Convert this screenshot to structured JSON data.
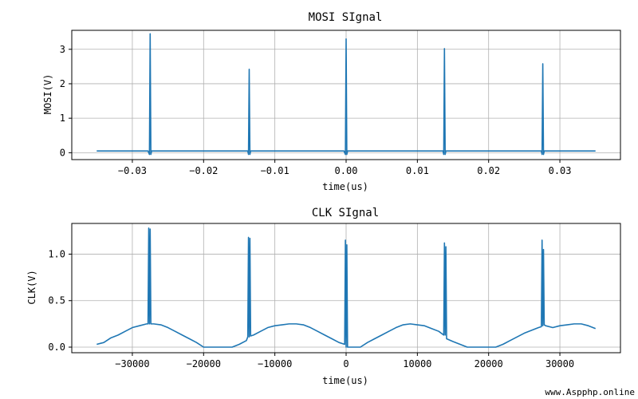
{
  "watermark": "www.Aspphp.online",
  "chart_data": [
    {
      "type": "line",
      "title": "MOSI SIgnal",
      "xlabel": "time(us)",
      "ylabel": "MOSI(V)",
      "xlim": [
        -0.0385,
        0.0385
      ],
      "ylim": [
        -0.2,
        3.55
      ],
      "xticks": [
        -0.03,
        -0.02,
        -0.01,
        0.0,
        0.01,
        0.02,
        0.03
      ],
      "xtick_labels": [
        "−0.03",
        "−0.02",
        "−0.01",
        "0.00",
        "0.01",
        "0.02",
        "0.03"
      ],
      "yticks": [
        0,
        1,
        2,
        3
      ],
      "ytick_labels": [
        "0",
        "1",
        "2",
        "3"
      ],
      "grid": true,
      "color": "#1f77b4",
      "series": [
        {
          "x": [
            -0.035,
            -0.0278,
            -0.0276,
            -0.0275,
            -0.0274,
            -0.0273,
            -0.0138,
            -0.0137,
            -0.0136,
            -0.0135,
            -0.0134,
            -0.0003,
            -0.0001,
            0.0,
            0.0001,
            0.0002,
            0.0136,
            0.0137,
            0.0138,
            0.0139,
            0.014,
            0.0274,
            0.0275,
            0.0276,
            0.0277,
            0.0278,
            0.035
          ],
          "y": [
            0.05,
            0.05,
            -0.05,
            3.45,
            -0.05,
            0.05,
            0.05,
            -0.05,
            2.42,
            -0.05,
            0.05,
            0.05,
            -0.05,
            3.3,
            -0.05,
            0.05,
            0.05,
            -0.05,
            3.02,
            -0.05,
            0.05,
            0.05,
            -0.05,
            2.58,
            -0.05,
            0.05,
            0.05
          ]
        }
      ]
    },
    {
      "type": "line",
      "title": "CLK SIgnal",
      "xlabel": "time(us)",
      "ylabel": "CLK(V)",
      "xlim": [
        -38500,
        38500
      ],
      "ylim": [
        -0.06,
        1.33
      ],
      "xticks": [
        -30000,
        -20000,
        -10000,
        0,
        10000,
        20000,
        30000
      ],
      "xtick_labels": [
        "−30000",
        "−20000",
        "−10000",
        "0",
        "10000",
        "20000",
        "30000"
      ],
      "yticks": [
        0.0,
        0.5,
        1.0
      ],
      "ytick_labels": [
        "0.0",
        "0.5",
        "1.0"
      ],
      "grid": true,
      "color": "#1f77b4",
      "series": [
        {
          "x": [
            -35000,
            -34000,
            -33000,
            -32000,
            -31000,
            -30000,
            -29000,
            -28000,
            -27800,
            -27700,
            -27600,
            -27500,
            -27400,
            -27300,
            -27000,
            -26000,
            -25000,
            -24000,
            -23000,
            -22000,
            -21000,
            -20000,
            -19000,
            -18000,
            -17000,
            -16000,
            -15000,
            -14000,
            -13800,
            -13700,
            -13600,
            -13500,
            -13400,
            -13000,
            -12000,
            -11000,
            -10000,
            -9000,
            -8000,
            -7000,
            -6000,
            -5000,
            -4000,
            -3000,
            -2000,
            -1000,
            -200,
            -100,
            0,
            100,
            200,
            300,
            1000,
            2000,
            3000,
            4000,
            5000,
            6000,
            7000,
            8000,
            9000,
            10000,
            11000,
            12000,
            13000,
            13700,
            13800,
            13900,
            14000,
            14100,
            15000,
            16000,
            17000,
            18000,
            19000,
            20000,
            21000,
            22000,
            23000,
            24000,
            25000,
            26000,
            27000,
            27400,
            27500,
            27600,
            27700,
            27800,
            28000,
            29000,
            30000,
            31000,
            32000,
            33000,
            34000,
            35000
          ],
          "y": [
            0.03,
            0.05,
            0.1,
            0.13,
            0.17,
            0.21,
            0.23,
            0.25,
            0.25,
            1.28,
            0.25,
            1.27,
            0.25,
            0.25,
            0.25,
            0.24,
            0.21,
            0.17,
            0.13,
            0.09,
            0.05,
            0.0,
            0.0,
            0.0,
            0.0,
            0.0,
            0.03,
            0.07,
            0.11,
            1.18,
            0.11,
            1.17,
            0.12,
            0.13,
            0.17,
            0.21,
            0.23,
            0.24,
            0.25,
            0.25,
            0.24,
            0.21,
            0.17,
            0.13,
            0.09,
            0.05,
            0.03,
            1.15,
            0.0,
            1.1,
            0.0,
            0.0,
            0.0,
            0.0,
            0.05,
            0.09,
            0.13,
            0.17,
            0.21,
            0.24,
            0.25,
            0.24,
            0.23,
            0.2,
            0.17,
            0.13,
            1.12,
            0.13,
            1.08,
            0.09,
            0.06,
            0.03,
            0.0,
            0.0,
            0.0,
            0.0,
            0.0,
            0.03,
            0.07,
            0.11,
            0.15,
            0.18,
            0.21,
            0.22,
            1.15,
            0.23,
            1.05,
            0.24,
            0.23,
            0.21,
            0.23,
            0.24,
            0.25,
            0.25,
            0.23,
            0.2
          ]
        }
      ]
    }
  ]
}
